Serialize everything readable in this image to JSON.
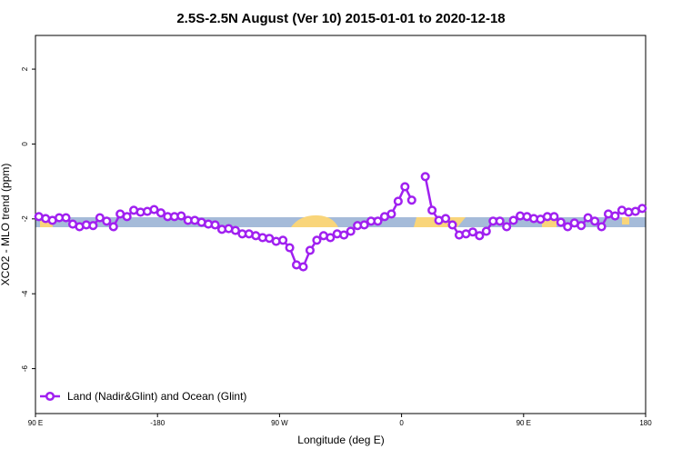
{
  "chart_data": {
    "type": "line",
    "title": "2.5S-2.5N August (Ver 10)   2015-01-01 to 2020-12-18",
    "x_label": "Longitude (deg E)",
    "y_label": "XCO2 - MLO trend (ppm)",
    "xlim": [
      -270,
      180
    ],
    "ylim": [
      -7.2,
      2.9
    ],
    "xticks": [
      {
        "value": -270,
        "label": "90 E"
      },
      -180,
      {
        "value": -90,
        "label": "90 W"
      },
      0,
      {
        "value": 90,
        "label": "90 E"
      },
      180
    ],
    "yticks": [
      2,
      0,
      -2,
      -4,
      -6
    ],
    "legend": "bottom-left",
    "x": [
      -267.5,
      -262.5,
      -257.5,
      -252.5,
      -247.5,
      -242.5,
      -237.5,
      -232.5,
      -227.5,
      -222.5,
      -217.5,
      -212.5,
      -207.5,
      -202.5,
      -197.5,
      -192.5,
      -187.5,
      -182.5,
      -177.5,
      -172.5,
      -167.5,
      -162.5,
      -157.5,
      -152.5,
      -147.5,
      -142.5,
      -137.5,
      -132.5,
      -127.5,
      -122.5,
      -117.5,
      -112.5,
      -107.5,
      -102.5,
      -97.5,
      -92.5,
      -87.5,
      -82.5,
      -77.5,
      -72.5,
      -67.5,
      -62.5,
      -57.5,
      -52.5,
      -47.5,
      -42.5,
      -37.5,
      -32.5,
      -27.5,
      -22.5,
      -17.5,
      -12.5,
      -7.5,
      -2.5,
      2.5,
      7.5,
      12.5,
      17.5,
      22.5,
      27.5,
      32.5,
      37.5,
      42.5,
      47.5,
      52.5,
      57.5,
      62.5,
      67.5,
      72.5,
      77.5,
      82.5,
      87.5,
      92.5,
      97.5,
      102.5,
      107.5,
      112.5,
      117.5,
      122.5,
      127.5,
      132.5,
      137.5,
      142.5,
      147.5,
      152.5,
      157.5,
      162.5,
      167.5,
      172.5,
      177.5
    ],
    "series": [
      {
        "name": "Land (Nadir&Glint) and Ocean (Glint)",
        "color": "#a020f0",
        "values": [
          -1.94,
          -1.99,
          -2.04,
          -1.97,
          -1.97,
          -2.14,
          -2.21,
          -2.16,
          -2.18,
          -1.97,
          -2.06,
          -2.21,
          -1.87,
          -1.94,
          -1.77,
          -1.82,
          -1.8,
          -1.75,
          -1.84,
          -1.94,
          -1.94,
          -1.92,
          -2.04,
          -2.04,
          -2.09,
          -2.14,
          -2.16,
          -2.28,
          -2.26,
          -2.31,
          -2.4,
          -2.4,
          -2.45,
          -2.5,
          -2.52,
          -2.6,
          -2.57,
          -2.77,
          -3.23,
          -3.28,
          -2.84,
          -2.57,
          -2.45,
          -2.5,
          -2.4,
          -2.43,
          -2.33,
          -2.18,
          -2.16,
          -2.06,
          -2.06,
          -1.94,
          -1.87,
          -1.53,
          -1.14,
          -1.5,
          null,
          -0.87,
          -1.77,
          -2.04,
          -1.99,
          -2.16,
          -2.43,
          -2.4,
          -2.35,
          -2.45,
          -2.33,
          -2.06,
          -2.06,
          -2.21,
          -2.04,
          -1.92,
          -1.94,
          -1.99,
          -2.01,
          -1.94,
          -1.94,
          -2.09,
          -2.21,
          -2.11,
          -2.18,
          -1.97,
          -2.06,
          -2.21,
          -1.87,
          -1.92,
          -1.77,
          -1.82,
          -1.8,
          -1.72
        ]
      }
    ]
  }
}
